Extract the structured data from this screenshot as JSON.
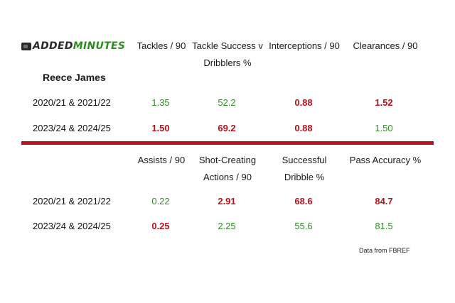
{
  "brand": {
    "logo_part1": "ADDED",
    "logo_part2": "MINUTES",
    "logo_icon": "tablet-icon",
    "colors": {
      "green": "#2e8b22",
      "red": "#b5121b",
      "dark": "#2a2a2a"
    }
  },
  "player": "Reece James",
  "source": "Data from FBREF",
  "chart_data": [
    {
      "type": "table",
      "columns": [
        "Tackles / 90",
        "Tackle Success v Dribblers %",
        "Interceptions / 90",
        "Clearances / 90"
      ],
      "rows": [
        {
          "label": "2020/21 & 2021/22",
          "values": [
            "1.35",
            "52.2",
            "0.88",
            "1.52"
          ],
          "colors": [
            "green",
            "green",
            "red",
            "red"
          ]
        },
        {
          "label": "2023/24 & 2024/25",
          "values": [
            "1.50",
            "69.2",
            "0.88",
            "1.50"
          ],
          "colors": [
            "red",
            "red",
            "red",
            "green"
          ]
        }
      ]
    },
    {
      "type": "table",
      "columns": [
        "Assists / 90",
        "Shot-Creating Actions / 90",
        "Successful Dribble %",
        "Pass Accuracy %"
      ],
      "rows": [
        {
          "label": "2020/21 & 2021/22",
          "values": [
            "0.22",
            "2.91",
            "68.6",
            "84.7"
          ],
          "colors": [
            "green",
            "red",
            "red",
            "red"
          ]
        },
        {
          "label": "2023/24 & 2024/25",
          "values": [
            "0.25",
            "2.25",
            "55.6",
            "81.5"
          ],
          "colors": [
            "red",
            "green",
            "green",
            "green"
          ]
        }
      ]
    }
  ]
}
